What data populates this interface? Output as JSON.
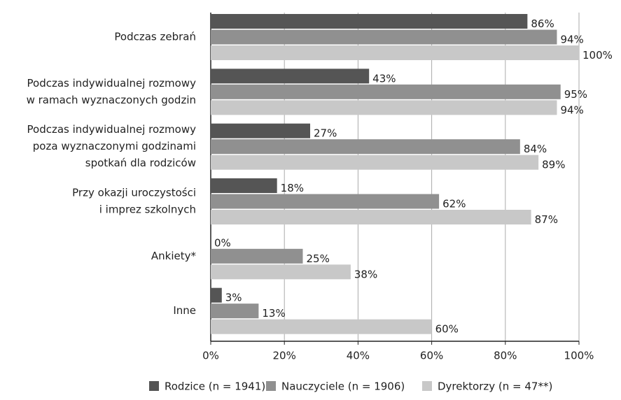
{
  "chart_data": {
    "type": "bar",
    "orientation": "horizontal",
    "categories": [
      [
        "Podczas zebrań"
      ],
      [
        "Podczas indywidualnej rozmowy",
        "w ramach wyznaczonych godzin"
      ],
      [
        "Podczas indywidualnej rozmowy",
        "poza wyznaczonymi godzinami",
        "spotkań dla rodziców"
      ],
      [
        "Przy okazji uroczystości",
        "i imprez szkolnych"
      ],
      [
        "Ankiety*"
      ],
      [
        "Inne"
      ]
    ],
    "series": [
      {
        "name": "Rodzice (n = 1941)",
        "color": "#555555",
        "values": [
          86,
          43,
          27,
          18,
          0,
          3
        ],
        "value_labels": [
          "86%",
          "43%",
          "27%",
          "18%",
          "0%",
          "3%"
        ]
      },
      {
        "name": "Nauczyciele (n = 1906)",
        "color": "#909090",
        "values": [
          94,
          95,
          84,
          62,
          25,
          13
        ],
        "value_labels": [
          "94%",
          "95%",
          "84%",
          "62%",
          "25%",
          "13%"
        ]
      },
      {
        "name": "Dyrektorzy (n = 47**)",
        "color": "#c8c8c8",
        "values": [
          100,
          94,
          89,
          87,
          38,
          60
        ],
        "value_labels": [
          "100%",
          "94%",
          "89%",
          "87%",
          "38%",
          "60%"
        ]
      }
    ],
    "xlim": [
      0,
      100
    ],
    "xticks": [
      {
        "value": 0,
        "label": "0%"
      },
      {
        "value": 20,
        "label": "20%"
      },
      {
        "value": 40,
        "label": "40%"
      },
      {
        "value": 60,
        "label": "60%"
      },
      {
        "value": 80,
        "label": "80%"
      },
      {
        "value": 100,
        "label": "100%"
      }
    ],
    "grid": true,
    "legend": "bottom"
  }
}
